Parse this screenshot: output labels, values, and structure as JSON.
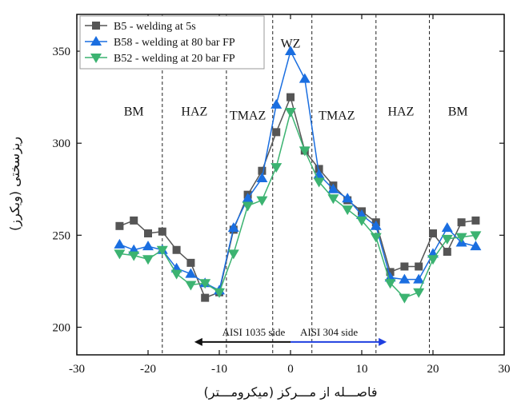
{
  "chart_data": {
    "type": "line",
    "title": "",
    "title_fragment": "",
    "xlabel": "فاصـــله از مـــرکز (میکرومـــتر)",
    "ylabel": "ریزسختی (ویکرز)",
    "xlim": [
      -30,
      30
    ],
    "ylim": [
      185,
      370
    ],
    "xticks": [
      -30,
      -20,
      -10,
      0,
      10,
      20,
      30
    ],
    "yticks": [
      200,
      250,
      300,
      350
    ],
    "grid": false,
    "legend_position": "top-left",
    "series": [
      {
        "name": "B5 - welding at 5s",
        "color": "#555555",
        "marker": "square",
        "x": [
          -24,
          -22,
          -20,
          -18,
          -16,
          -14,
          -12,
          -10,
          -8,
          -6,
          -4,
          -2,
          0,
          2,
          4,
          6,
          8,
          10,
          12,
          14,
          16,
          18,
          20,
          22,
          24,
          26
        ],
        "y": [
          255,
          258,
          251,
          252,
          242,
          235,
          216,
          219,
          253,
          272,
          285,
          306,
          325,
          296,
          286,
          277,
          269,
          263,
          257,
          230,
          233,
          233,
          251,
          241,
          257,
          258
        ]
      },
      {
        "name": "B58 - welding at 80 bar FP",
        "color": "#1a6ee0",
        "marker": "triangle-up",
        "x": [
          -24,
          -22,
          -20,
          -18,
          -16,
          -14,
          -12,
          -10,
          -8,
          -6,
          -4,
          -2,
          0,
          2,
          4,
          6,
          8,
          10,
          12,
          14,
          16,
          18,
          20,
          22,
          24,
          26
        ],
        "y": [
          245,
          242,
          244,
          242,
          232,
          229,
          224,
          220,
          254,
          270,
          281,
          321,
          350,
          335,
          283,
          275,
          270,
          261,
          255,
          227,
          226,
          226,
          240,
          254,
          246,
          244
        ]
      },
      {
        "name": "B52 - welding at 20 bar FP",
        "color": "#3cb371",
        "marker": "triangle-down",
        "x": [
          -24,
          -22,
          -20,
          -18,
          -16,
          -14,
          -12,
          -10,
          -8,
          -6,
          -4,
          -2,
          0,
          2,
          4,
          6,
          8,
          10,
          12,
          14,
          16,
          18,
          20,
          22,
          24,
          26
        ],
        "y": [
          240,
          239,
          237,
          242,
          229,
          223,
          224,
          219,
          240,
          266,
          269,
          287,
          317,
          296,
          279,
          270,
          264,
          258,
          249,
          224,
          216,
          219,
          237,
          248,
          249,
          250
        ]
      }
    ],
    "zone_boundaries": [
      -18,
      -9,
      -2.5,
      3,
      12,
      19.5
    ],
    "zone_labels": [
      {
        "text": "BM",
        "x": -22,
        "y": 315
      },
      {
        "text": "HAZ",
        "x": -13.5,
        "y": 315
      },
      {
        "text": "TMAZ",
        "x": -6,
        "y": 313
      },
      {
        "text": "WZ",
        "x": 0,
        "y": 352
      },
      {
        "text": "TMAZ",
        "x": 6.5,
        "y": 313
      },
      {
        "text": "HAZ",
        "x": 15.5,
        "y": 315
      },
      {
        "text": "BM",
        "x": 23.5,
        "y": 315
      }
    ],
    "side_arrows": [
      {
        "text": "AISI 1035 side",
        "from": 0,
        "to": -13.5,
        "y": 192,
        "color": "#111111"
      },
      {
        "text": "AISI 304 side",
        "from": 0,
        "to": 13.5,
        "y": 192,
        "color": "#1f3fe0"
      }
    ]
  }
}
